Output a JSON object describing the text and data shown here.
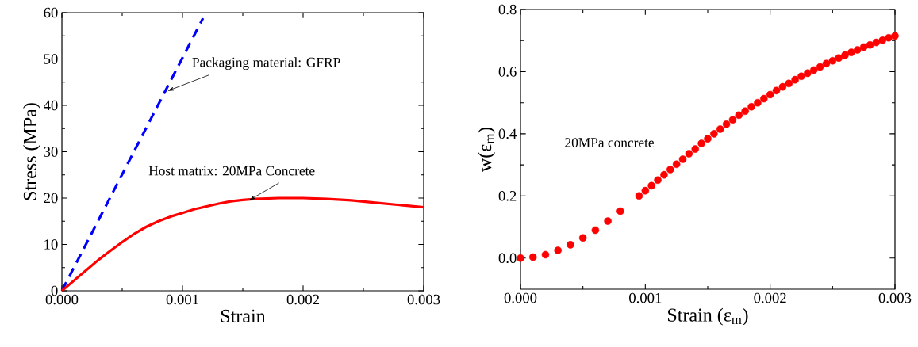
{
  "chart_data": [
    {
      "type": "line",
      "xlabel": "Strain",
      "ylabel": "Stress (MPa)",
      "xlim": [
        0,
        0.003
      ],
      "ylim": [
        0,
        60
      ],
      "xticks": [
        {
          "value": 0,
          "label": "0.000"
        },
        {
          "value": 0.001,
          "label": "0.001"
        },
        {
          "value": 0.002,
          "label": "0.002"
        },
        {
          "value": 0.003,
          "label": "0.003"
        }
      ],
      "yticks": [
        0,
        10,
        20,
        30,
        40,
        50,
        60
      ],
      "series": [
        {
          "color": "#0000ff",
          "line_style": "dashed",
          "x": [
            0,
            0.00117
          ],
          "values": [
            0,
            58.8
          ]
        },
        {
          "color": "#ff0000",
          "line_style": "solid",
          "x": [
            0,
            0.0001,
            0.0002,
            0.0003,
            0.0004,
            0.0005,
            0.0006,
            0.0007,
            0.0008,
            0.0009,
            0.001,
            0.0011,
            0.0012,
            0.0013,
            0.0014,
            0.0015,
            0.0016,
            0.0018,
            0.002,
            0.0022,
            0.0024,
            0.0026,
            0.0028,
            0.003
          ],
          "values": [
            0,
            2.2,
            4.4,
            6.6,
            8.6,
            10.5,
            12.3,
            13.8,
            15.0,
            16.0,
            16.8,
            17.6,
            18.2,
            18.8,
            19.3,
            19.6,
            19.8,
            20.0,
            20.0,
            19.8,
            19.5,
            19.0,
            18.5,
            18.0
          ]
        }
      ],
      "annotations": [
        {
          "text": "Packaging material: GFRP",
          "x": 0.000875,
          "y": 43.1
        },
        {
          "text": "Host matrix: 20MPa Concrete",
          "x": 0.00155,
          "y": 19.5
        }
      ]
    },
    {
      "type": "scatter",
      "xlabel": "Strain (ε$_{m}$)",
      "ylabel": "w(ε$_{m}$)",
      "xlim": [
        0,
        0.003
      ],
      "ylim": [
        -0.1,
        0.8
      ],
      "xticks": [
        {
          "value": 0,
          "label": "0.000"
        },
        {
          "value": 0.001,
          "label": "0.001"
        },
        {
          "value": 0.002,
          "label": "0.002"
        },
        {
          "value": 0.003,
          "label": "0.003"
        }
      ],
      "yticks": [
        {
          "value": 0,
          "label": "0.0"
        },
        {
          "value": 0.2,
          "label": "0.2"
        },
        {
          "value": 0.4,
          "label": "0.4"
        },
        {
          "value": 0.6,
          "label": "0.6"
        },
        {
          "value": 0.8,
          "label": "0.8"
        }
      ],
      "marker": "circle",
      "color": "#ff0000",
      "x": [
        0,
        0.0001,
        0.0002,
        0.0003,
        0.0004,
        0.0005,
        0.0006,
        0.0007,
        0.0008,
        0.00095,
        0.001,
        0.00105,
        0.0011,
        0.00115,
        0.0012,
        0.00125,
        0.0013,
        0.00135,
        0.0014,
        0.00145,
        0.0015,
        0.00155,
        0.0016,
        0.00165,
        0.0017,
        0.00175,
        0.0018,
        0.00185,
        0.0019,
        0.00195,
        0.002,
        0.00205,
        0.0021,
        0.00215,
        0.0022,
        0.00225,
        0.0023,
        0.00235,
        0.0024,
        0.00245,
        0.0025,
        0.00255,
        0.0026,
        0.00265,
        0.0027,
        0.00275,
        0.0028,
        0.00285,
        0.0029,
        0.00295,
        0.003
      ],
      "values": [
        0.0,
        0.003,
        0.011,
        0.025,
        0.043,
        0.065,
        0.09,
        0.119,
        0.151,
        0.2,
        0.217,
        0.233,
        0.251,
        0.268,
        0.285,
        0.302,
        0.318,
        0.336,
        0.351,
        0.369,
        0.384,
        0.4,
        0.415,
        0.431,
        0.445,
        0.46,
        0.473,
        0.487,
        0.5,
        0.513,
        0.526,
        0.539,
        0.551,
        0.562,
        0.574,
        0.585,
        0.595,
        0.605,
        0.615,
        0.626,
        0.635,
        0.644,
        0.653,
        0.662,
        0.67,
        0.679,
        0.686,
        0.694,
        0.701,
        0.709,
        0.715
      ],
      "annotations": [
        "20MPa concrete"
      ]
    }
  ]
}
